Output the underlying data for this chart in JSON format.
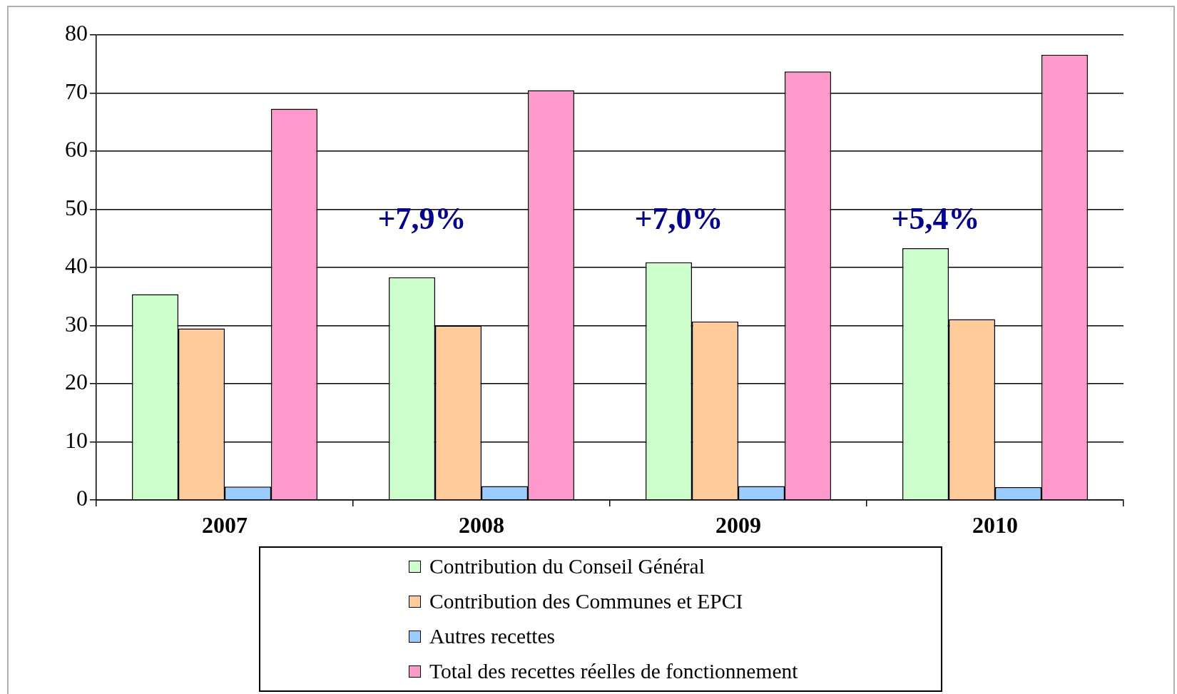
{
  "chart_data": {
    "type": "bar",
    "categories": [
      "2007",
      "2008",
      "2009",
      "2010"
    ],
    "series": [
      {
        "name": "Contribution du Conseil Général",
        "color": "#ccffcc",
        "values": [
          35.4,
          38.3,
          40.9,
          43.3
        ]
      },
      {
        "name": "Contribution des Communes et EPCI",
        "color": "#ffcc99",
        "values": [
          29.5,
          30.0,
          30.7,
          31.1
        ]
      },
      {
        "name": "Autres recettes",
        "color": "#99ccff",
        "values": [
          2.3,
          2.4,
          2.4,
          2.2
        ]
      },
      {
        "name": "Total des recettes réelles de fonctionnement",
        "color": "#ff99cc",
        "values": [
          67.3,
          70.5,
          73.7,
          76.6
        ]
      }
    ],
    "ylim": [
      0,
      80
    ],
    "yticks": [
      0,
      10,
      20,
      30,
      40,
      50,
      60,
      70,
      80
    ],
    "grid": "y",
    "legend": "bottom",
    "annotations": [
      "+7,9%",
      "+7,0%",
      "+5,4%"
    ]
  }
}
